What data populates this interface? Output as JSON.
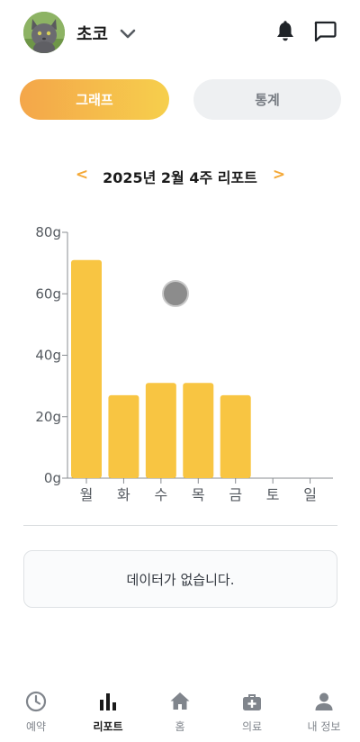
{
  "header": {
    "pet_name": "초코"
  },
  "toggle": {
    "graph_label": "그래프",
    "stats_label": "통계"
  },
  "week_nav": {
    "prev": "<",
    "title": "2025년 2월 4주 리포트",
    "next": ">"
  },
  "chart_data": {
    "type": "bar",
    "categories": [
      "월",
      "화",
      "수",
      "목",
      "금",
      "토",
      "일"
    ],
    "values": [
      71,
      27,
      31,
      31,
      27,
      null,
      null
    ],
    "ylim": [
      0,
      80
    ],
    "yticks": [
      "0g",
      "20g",
      "40g",
      "60g",
      "80g"
    ],
    "bar_color": "#f8c542"
  },
  "empty_message": "데이터가 없습니다.",
  "bottom_nav": {
    "items": [
      {
        "label": "예약",
        "icon": "clock-icon"
      },
      {
        "label": "리포트",
        "icon": "bar-chart-icon",
        "active": true
      },
      {
        "label": "홈",
        "icon": "home-icon"
      },
      {
        "label": "의료",
        "icon": "medical-kit-icon"
      },
      {
        "label": "내 정보",
        "icon": "person-icon"
      }
    ]
  },
  "colors": {
    "accent": "#f4a836",
    "active_tab_start": "#f4a64a",
    "active_tab_end": "#f6cf4c",
    "nav_active": "#1b1b1b",
    "nav_inactive": "#80858c"
  }
}
